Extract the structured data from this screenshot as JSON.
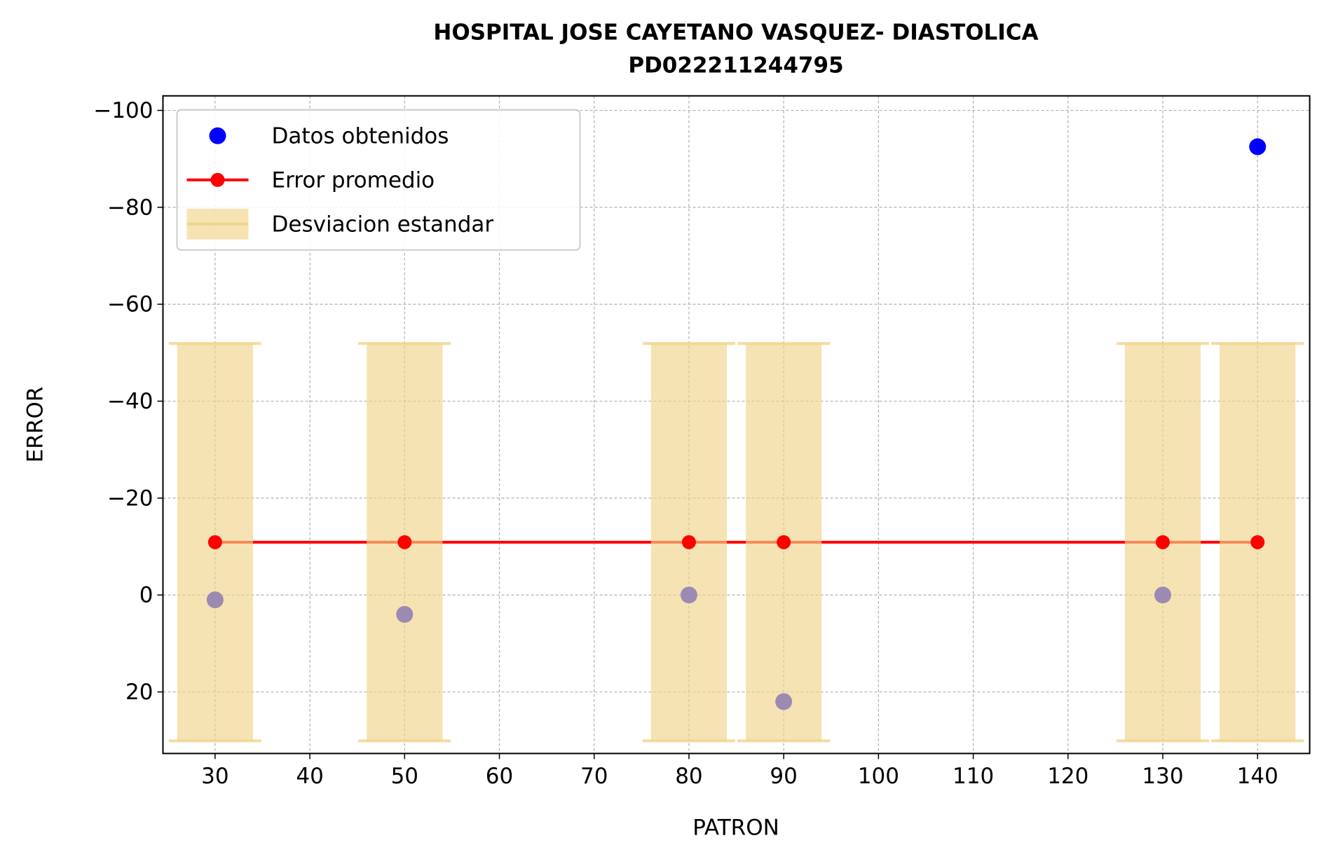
{
  "chart_data": {
    "type": "scatter",
    "title": "HOSPITAL JOSE CAYETANO VASQUEZ- DIASTOLICA",
    "subtitle": "PD022211244795",
    "x_label": "PATRON",
    "y_label": "ERROR",
    "x": [
      30,
      50,
      80,
      90,
      130,
      140
    ],
    "series": [
      {
        "name": "Datos obtenidos",
        "type": "scatter",
        "color": "#0000ff",
        "values": [
          1,
          4,
          0,
          22,
          0,
          -92.5
        ]
      },
      {
        "name": "Error promedio",
        "type": "line",
        "color": "#ff0000",
        "values": [
          -10.9,
          -10.9,
          -10.9,
          -10.9,
          -10.9,
          -10.9
        ]
      },
      {
        "name": "Desviacion estandar",
        "type": "band",
        "color": "#f0d48a",
        "values": [
          -10.9,
          -10.9,
          -10.9,
          -10.9,
          -10.9,
          -10.9
        ],
        "errors": [
          41,
          41,
          41,
          41,
          41,
          41
        ]
      }
    ],
    "xlim": [
      24.5,
      145.5
    ],
    "xticks": [
      30,
      40,
      50,
      60,
      70,
      80,
      90,
      100,
      110,
      120,
      130,
      140
    ],
    "ylim": [
      32.7,
      -103
    ],
    "yticks": [
      {
        "value": -100,
        "label": "−100"
      },
      {
        "value": -80,
        "label": "−80"
      },
      {
        "value": -60,
        "label": "−60"
      },
      {
        "value": -40,
        "label": "−40"
      },
      {
        "value": -20,
        "label": "−20"
      },
      0,
      20
    ],
    "grid": true,
    "legend": "upper left"
  }
}
